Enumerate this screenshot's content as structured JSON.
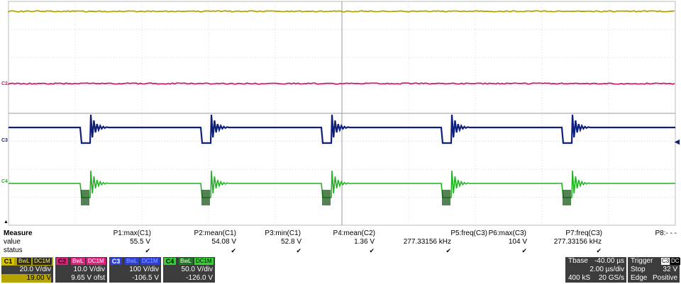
{
  "channels": [
    {
      "id": "C1",
      "label": "C1",
      "color": "#b5a400",
      "tag_color": "#b5a400",
      "flags": [
        "BwL",
        "DC1M"
      ],
      "vdiv": "20.0 V/div",
      "offset": "19.00 V"
    },
    {
      "id": "C2",
      "label": "C2",
      "color": "#c8206a",
      "tag_color": "#e21f7e",
      "flags": [
        "BwL",
        "DC1M"
      ],
      "vdiv": "10.0 V/div",
      "offset": "9.65 V ofst"
    },
    {
      "id": "C3",
      "label": "C3",
      "color": "#0e1f7c",
      "tag_color": "#2b3fe0",
      "flags": [
        "BwL",
        "DC1M"
      ],
      "vdiv": "100 V/div",
      "offset": "-106.5 V"
    },
    {
      "id": "C4",
      "label": "C4",
      "color": "#1fb31f",
      "tag_color": "#35d035",
      "flags": [
        "BwL",
        "DC1M"
      ],
      "vdiv": "50.0 V/div",
      "offset": "-126.0 V"
    }
  ],
  "measure": {
    "title": "Measure",
    "row_labels": {
      "value": "value",
      "status": "status"
    },
    "params": [
      {
        "name": "P1:max(C1)",
        "value": "55.5 V",
        "status": "✔"
      },
      {
        "name": "P2:mean(C1)",
        "value": "54.08 V",
        "status": "✔"
      },
      {
        "name": "P3:min(C1)",
        "value": "52.8 V",
        "status": "✔"
      },
      {
        "name": "P4:mean(C2)",
        "value": "1.36 V",
        "status": "✔"
      },
      {
        "name": "P5:freq(C3)",
        "value": "277.33156 kHz",
        "status": "✔"
      },
      {
        "name": "P6:max(C3)",
        "value": "104 V",
        "status": "✔"
      },
      {
        "name": "P7:freq(C3)",
        "value": "277.33156 kHz",
        "status": "✔"
      },
      {
        "name": "P8:- - -",
        "value": "",
        "status": ""
      }
    ]
  },
  "timebase": {
    "label": "Tbase",
    "delay": "-40.00 µs",
    "tdiv": "2.00 µs/div",
    "samples": "400 kS",
    "rate": "20 GS/s"
  },
  "trigger": {
    "label": "Trigger",
    "source": "C3",
    "coupling": "DC",
    "mode": "Stop",
    "level": "32 V",
    "type": "Edge",
    "slope": "Positive"
  },
  "indicators": {
    "trigger_arrow": "◀",
    "ground_arrow": "▲"
  }
}
